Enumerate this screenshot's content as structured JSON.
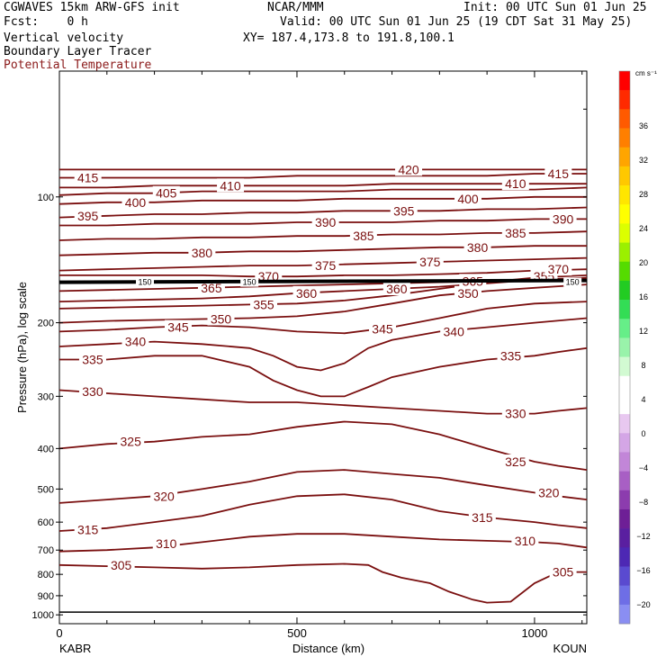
{
  "header": {
    "model_line": "CGWAVES 15km ARW-GFS init",
    "org": "NCAR/MMM",
    "init": "Init: 00 UTC Sun 01 Jun 25",
    "fcst": "Fcst:    0 h",
    "valid": "Valid: 00 UTC Sun 01 Jun 25 (19 CDT Sat 31 May 25)",
    "field1": "Vertical velocity",
    "field2": "Boundary Layer Tracer",
    "field3": "Potential Temperature",
    "xy": "XY= 187.4,173.8 to 191.8,100.1"
  },
  "colors": {
    "theta": "#7a0f0f",
    "field3_text": "#8b1a1a",
    "tropopause": "#000000"
  },
  "chart_data": {
    "type": "line",
    "xlabel": "Distance (km)",
    "ylabel": "Pressure (hPa), log scale",
    "xlim": [
      0,
      1110
    ],
    "ylim": [
      1050,
      50
    ],
    "y_log": true,
    "x_ticks": [
      0,
      500,
      1000
    ],
    "x_minor_ticks": [
      100,
      200,
      300,
      400,
      600,
      700,
      800,
      900,
      1100
    ],
    "y_ticks": [
      100,
      200,
      300,
      400,
      500,
      600,
      700,
      800,
      900,
      1000
    ],
    "endpoints": {
      "left": "KABR",
      "right": "KOUN"
    },
    "colorbar": {
      "unit": "cm s⁻¹",
      "ticks": [
        36,
        32,
        28,
        24,
        20,
        16,
        12,
        8,
        4,
        0,
        -4,
        -8,
        -12,
        -16,
        -20
      ],
      "colors": [
        "#ff0000",
        "#ff2a00",
        "#ff5a00",
        "#ff7f00",
        "#ffa500",
        "#ffc800",
        "#ffe600",
        "#ffff00",
        "#dcff00",
        "#9bf000",
        "#55dc00",
        "#22cc22",
        "#33dd55",
        "#66ee88",
        "#99f3aa",
        "#d2fad2",
        "#ffffff",
        "#ffffff",
        "#e8c8f0",
        "#d4a6e6",
        "#c286d8",
        "#a85fc4",
        "#8c3cae",
        "#6e1f96",
        "#5a1fa0",
        "#4d28b4",
        "#5a4ad0",
        "#6e6ee6",
        "#8a8ef2"
      ]
    },
    "tropopause_label": "150",
    "series": [
      {
        "label": "305",
        "x": [
          0,
          100,
          200,
          300,
          400,
          500,
          600,
          650,
          680,
          720,
          780,
          820,
          870,
          900,
          950,
          1000,
          1050,
          1110
        ],
        "y": [
          760,
          765,
          770,
          775,
          770,
          760,
          755,
          760,
          790,
          815,
          840,
          880,
          920,
          935,
          930,
          840,
          790,
          790
        ],
        "labels": [
          {
            "x": 130,
            "p": 760,
            "t": "305"
          },
          {
            "x": 1060,
            "p": 790,
            "t": "305"
          }
        ]
      },
      {
        "label": "310",
        "x": [
          0,
          100,
          200,
          300,
          400,
          500,
          600,
          700,
          800,
          900,
          1000,
          1050,
          1110
        ],
        "y": [
          705,
          700,
          690,
          670,
          650,
          640,
          640,
          650,
          660,
          665,
          670,
          675,
          690
        ],
        "labels": [
          {
            "x": 225,
            "p": 675,
            "t": "310"
          },
          {
            "x": 980,
            "p": 665,
            "t": "310"
          }
        ]
      },
      {
        "label": "315",
        "x": [
          0,
          100,
          200,
          300,
          400,
          500,
          600,
          700,
          800,
          900,
          1000,
          1050,
          1110
        ],
        "y": [
          630,
          620,
          600,
          580,
          545,
          520,
          515,
          530,
          565,
          585,
          600,
          610,
          620
        ],
        "labels": [
          {
            "x": 60,
            "p": 625,
            "t": "315"
          },
          {
            "x": 890,
            "p": 585,
            "t": "315"
          }
        ]
      },
      {
        "label": "320",
        "x": [
          0,
          100,
          200,
          300,
          400,
          500,
          600,
          700,
          800,
          900,
          1000,
          1050,
          1110
        ],
        "y": [
          540,
          530,
          520,
          500,
          480,
          455,
          450,
          460,
          470,
          490,
          510,
          520,
          530
        ],
        "labels": [
          {
            "x": 220,
            "p": 520,
            "t": "320"
          },
          {
            "x": 1030,
            "p": 510,
            "t": "320"
          }
        ]
      },
      {
        "label": "325",
        "x": [
          0,
          100,
          200,
          300,
          400,
          500,
          600,
          700,
          800,
          900,
          1000,
          1050,
          1110
        ],
        "y": [
          400,
          390,
          385,
          375,
          370,
          355,
          345,
          350,
          370,
          400,
          430,
          440,
          450
        ],
        "labels": [
          {
            "x": 150,
            "p": 385,
            "t": "325"
          },
          {
            "x": 960,
            "p": 430,
            "t": "325"
          }
        ]
      },
      {
        "label": "330",
        "x": [
          0,
          100,
          200,
          300,
          400,
          500,
          600,
          700,
          800,
          900,
          1000,
          1050,
          1110
        ],
        "y": [
          290,
          295,
          300,
          305,
          310,
          310,
          315,
          320,
          325,
          330,
          330,
          325,
          320
        ],
        "labels": [
          {
            "x": 70,
            "p": 292,
            "t": "330"
          },
          {
            "x": 960,
            "p": 330,
            "t": "330"
          }
        ]
      },
      {
        "label": "335",
        "x": [
          0,
          100,
          200,
          300,
          400,
          450,
          500,
          550,
          600,
          650,
          700,
          800,
          900,
          1000,
          1050,
          1110
        ],
        "y": [
          245,
          245,
          240,
          240,
          255,
          275,
          290,
          300,
          300,
          285,
          270,
          255,
          245,
          240,
          235,
          230
        ],
        "labels": [
          {
            "x": 70,
            "p": 245,
            "t": "335"
          },
          {
            "x": 950,
            "p": 240,
            "t": "335"
          }
        ]
      },
      {
        "label": "340",
        "x": [
          0,
          100,
          200,
          300,
          400,
          450,
          500,
          550,
          600,
          650,
          700,
          800,
          900,
          1000,
          1110
        ],
        "y": [
          228,
          225,
          222,
          225,
          230,
          240,
          255,
          260,
          250,
          230,
          220,
          210,
          205,
          200,
          195
        ],
        "labels": [
          {
            "x": 160,
            "p": 222,
            "t": "340"
          },
          {
            "x": 830,
            "p": 210,
            "t": "340"
          }
        ]
      },
      {
        "label": "345",
        "x": [
          0,
          100,
          200,
          300,
          400,
          500,
          600,
          700,
          800,
          900,
          1000,
          1110
        ],
        "y": [
          210,
          208,
          205,
          203,
          205,
          210,
          212,
          205,
          195,
          185,
          180,
          178
        ],
        "labels": [
          {
            "x": 250,
            "p": 205,
            "t": "345"
          },
          {
            "x": 680,
            "p": 207,
            "t": "345"
          }
        ]
      },
      {
        "label": "350",
        "x": [
          0,
          100,
          200,
          300,
          400,
          500,
          600,
          700,
          800,
          900,
          1000,
          1110
        ],
        "y": [
          200,
          198,
          197,
          196,
          195,
          193,
          188,
          180,
          172,
          168,
          165,
          162
        ],
        "labels": [
          {
            "x": 340,
            "p": 196,
            "t": "350"
          },
          {
            "x": 860,
            "p": 170,
            "t": "350"
          }
        ]
      },
      {
        "label": "355",
        "x": [
          0,
          100,
          200,
          300,
          400,
          500,
          600,
          700,
          800,
          900,
          1000,
          1110
        ],
        "y": [
          185,
          184,
          183,
          182,
          181,
          180,
          177,
          172,
          166,
          160,
          156,
          154
        ],
        "labels": [
          {
            "x": 430,
            "p": 181,
            "t": "355"
          },
          {
            "x": 1020,
            "p": 155,
            "t": "355"
          }
        ]
      },
      {
        "label": "360",
        "x": [
          0,
          100,
          200,
          300,
          400,
          500,
          600,
          700,
          800,
          900,
          1000,
          1110
        ],
        "y": [
          178,
          177,
          176,
          175,
          173,
          170,
          168,
          166,
          164,
          161,
          158,
          156
        ],
        "labels": [
          {
            "x": 520,
            "p": 170,
            "t": "360"
          },
          {
            "x": 710,
            "p": 166,
            "t": "360"
          }
        ]
      },
      {
        "label": "365",
        "x": [
          0,
          100,
          200,
          300,
          400,
          500,
          600,
          700,
          800,
          900,
          1000,
          1110
        ],
        "y": [
          168,
          167,
          166,
          165,
          164,
          163,
          162,
          161,
          160,
          159,
          158,
          157
        ],
        "labels": [
          {
            "x": 320,
            "p": 165,
            "t": "365"
          },
          {
            "x": 870,
            "p": 159,
            "t": "365"
          }
        ]
      },
      {
        "label": "370",
        "x": [
          0,
          100,
          200,
          300,
          400,
          500,
          600,
          700,
          800,
          900,
          1000,
          1110
        ],
        "y": [
          154,
          154,
          154,
          154,
          155,
          155,
          154,
          154,
          153,
          152,
          150,
          149
        ],
        "labels": [
          {
            "x": 440,
            "p": 155,
            "t": "370"
          },
          {
            "x": 1050,
            "p": 149,
            "t": "370"
          }
        ]
      },
      {
        "label": "375",
        "x": [
          0,
          100,
          200,
          300,
          400,
          500,
          600,
          700,
          800,
          900,
          1000,
          1110
        ],
        "y": [
          150,
          149,
          148,
          147,
          146,
          146,
          145,
          144,
          143,
          142,
          141,
          140
        ],
        "labels": [
          {
            "x": 560,
            "p": 146,
            "t": "375"
          },
          {
            "x": 780,
            "p": 143,
            "t": "375"
          }
        ]
      },
      {
        "label": "380",
        "x": [
          0,
          100,
          200,
          300,
          400,
          500,
          600,
          700,
          800,
          900,
          1000,
          1110
        ],
        "y": [
          138,
          137,
          136,
          136,
          135,
          135,
          134,
          133,
          132,
          132,
          131,
          131
        ],
        "labels": [
          {
            "x": 300,
            "p": 136,
            "t": "380"
          },
          {
            "x": 880,
            "p": 132,
            "t": "380"
          }
        ]
      },
      {
        "label": "385",
        "x": [
          0,
          100,
          200,
          300,
          400,
          500,
          600,
          700,
          800,
          900,
          1000,
          1110
        ],
        "y": [
          127,
          126,
          126,
          125,
          125,
          124,
          124,
          123,
          123,
          122,
          122,
          121
        ],
        "labels": [
          {
            "x": 640,
            "p": 124,
            "t": "385"
          },
          {
            "x": 960,
            "p": 122,
            "t": "385"
          }
        ]
      },
      {
        "label": "390",
        "x": [
          0,
          100,
          200,
          300,
          400,
          500,
          600,
          700,
          800,
          900,
          1000,
          1110
        ],
        "y": [
          117,
          117,
          116,
          116,
          116,
          115,
          115,
          115,
          114,
          114,
          113,
          113
        ],
        "labels": [
          {
            "x": 560,
            "p": 115,
            "t": "390"
          },
          {
            "x": 1060,
            "p": 113,
            "t": "390"
          }
        ]
      },
      {
        "label": "395",
        "x": [
          0,
          100,
          200,
          300,
          400,
          500,
          600,
          700,
          800,
          900,
          1000,
          1110
        ],
        "y": [
          112,
          111,
          110,
          110,
          109,
          109,
          108,
          108,
          108,
          107,
          107,
          106
        ],
        "labels": [
          {
            "x": 60,
            "p": 111,
            "t": "395"
          },
          {
            "x": 725,
            "p": 108,
            "t": "395"
          }
        ]
      },
      {
        "label": "400",
        "x": [
          0,
          100,
          200,
          300,
          400,
          500,
          600,
          700,
          800,
          900,
          1000,
          1110
        ],
        "y": [
          104,
          103,
          103,
          102,
          102,
          102,
          101,
          101,
          101,
          101,
          100,
          100
        ],
        "labels": [
          {
            "x": 160,
            "p": 103,
            "t": "400"
          },
          {
            "x": 860,
            "p": 101,
            "t": "400"
          }
        ]
      },
      {
        "label": "405",
        "x": [
          0,
          100,
          200,
          300,
          400,
          500,
          600,
          700,
          800,
          900,
          1000,
          1110
        ],
        "y": [
          99,
          98,
          98,
          97,
          97,
          97,
          97,
          96,
          96,
          96,
          96,
          95
        ],
        "labels": [
          {
            "x": 225,
            "p": 98,
            "t": "405"
          }
        ]
      },
      {
        "label": "410",
        "x": [
          0,
          100,
          200,
          300,
          400,
          500,
          600,
          700,
          800,
          900,
          1000,
          1110
        ],
        "y": [
          95,
          95,
          94,
          94,
          94,
          94,
          94,
          93,
          93,
          93,
          93,
          93
        ],
        "labels": [
          {
            "x": 360,
            "p": 94,
            "t": "410"
          },
          {
            "x": 960,
            "p": 93,
            "t": "410"
          }
        ]
      },
      {
        "label": "415",
        "x": [
          0,
          100,
          200,
          300,
          400,
          500,
          600,
          700,
          800,
          900,
          1000,
          1110
        ],
        "y": [
          90,
          90,
          90,
          90,
          90,
          89,
          89,
          89,
          89,
          89,
          88,
          88
        ],
        "labels": [
          {
            "x": 60,
            "p": 90,
            "t": "415"
          },
          {
            "x": 1050,
            "p": 88,
            "t": "415"
          }
        ]
      },
      {
        "label": "420",
        "x": [
          0,
          100,
          200,
          300,
          400,
          500,
          600,
          700,
          800,
          900,
          1000,
          1110
        ],
        "y": [
          86,
          86,
          86,
          86,
          86,
          86,
          86,
          86,
          86,
          86,
          86,
          86
        ],
        "labels": [
          {
            "x": 735,
            "p": 86,
            "t": "420"
          }
        ]
      }
    ]
  }
}
